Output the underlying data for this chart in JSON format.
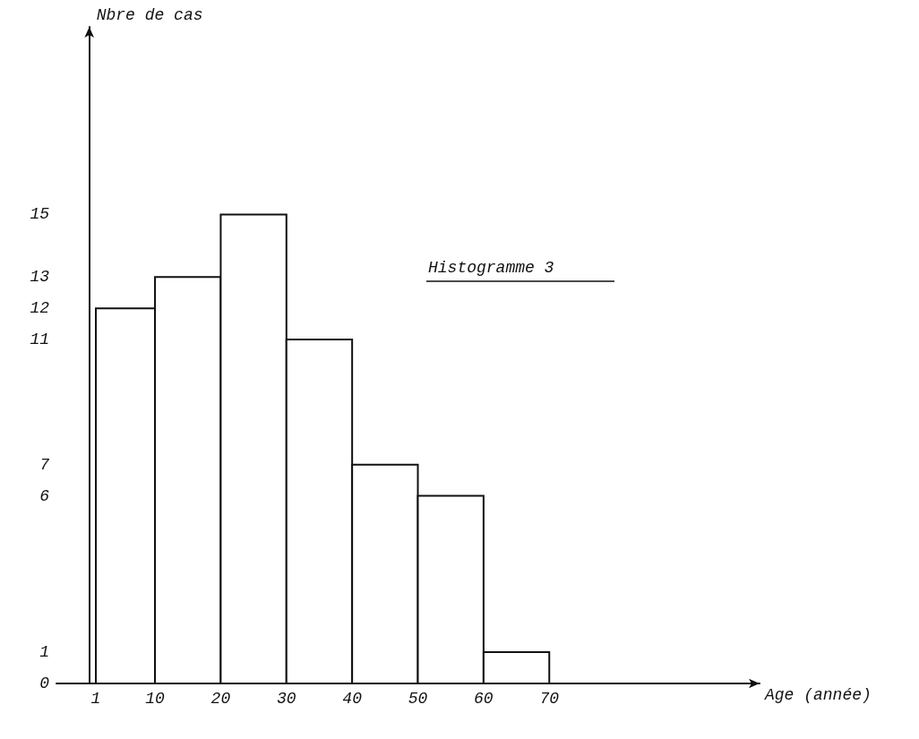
{
  "chart_data": {
    "type": "histogram",
    "xlabel": "Age (année)",
    "ylabel": "Nbre de cas",
    "annotations": [
      "Histogramme 3"
    ],
    "bins": [
      1,
      10,
      20,
      30,
      40,
      50,
      60,
      70
    ],
    "values": [
      12,
      13,
      15,
      11,
      7,
      6,
      1
    ],
    "color": "#ffffff",
    "xlim": [
      -5,
      102
    ],
    "xticks": [
      1,
      10,
      20,
      30,
      40,
      50,
      60,
      70
    ],
    "ylim": [
      0,
      21
    ],
    "yticks": [
      0,
      1,
      6,
      7,
      11,
      12,
      13,
      15
    ],
    "grid": false
  }
}
